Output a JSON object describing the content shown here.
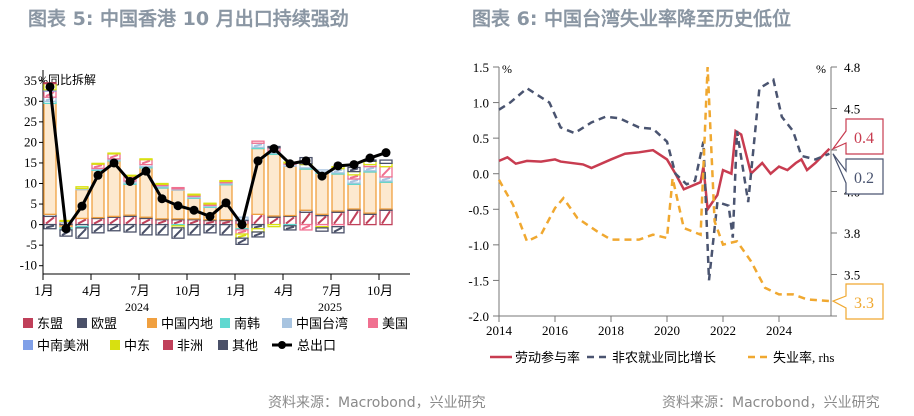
{
  "left": {
    "title": "图表 5:  中国香港 10 月出口持续强劲",
    "source": "资料来源：Macrobond，兴业研究",
    "chart_data": {
      "type": "bar",
      "stacked": true,
      "unit_label": "%同比拆解",
      "ylim": [
        -10,
        35
      ],
      "yticks": [
        -10,
        -5,
        0,
        5,
        10,
        15,
        20,
        25,
        30,
        35
      ],
      "x_tick_labels": [
        "1月",
        "4月",
        "7月",
        "10月",
        "1月",
        "4月",
        "7月",
        "10月"
      ],
      "year_labels": [
        "2024",
        "2025"
      ],
      "categories": [
        "2024-01",
        "2024-02",
        "2024-03",
        "2024-04",
        "2024-05",
        "2024-06",
        "2024-07",
        "2024-08",
        "2024-09",
        "2024-10",
        "2024-11",
        "2024-12",
        "2025-01",
        "2025-02",
        "2025-03",
        "2025-04",
        "2025-05",
        "2025-06",
        "2025-07",
        "2025-08",
        "2025-09",
        "2025-10"
      ],
      "series": [
        {
          "name": "东盟",
          "color": "#c0405a",
          "values": [
            2,
            0.5,
            1.5,
            1.5,
            1.8,
            2,
            1.5,
            1.2,
            1.2,
            1.2,
            1,
            1,
            1,
            2.5,
            1.8,
            2,
            3,
            2.2,
            3,
            3.5,
            2.5,
            3.5
          ]
        },
        {
          "name": "欧盟",
          "color": "#4a5068",
          "values": [
            0.5,
            -0.3,
            -0.5,
            0.2,
            0.2,
            0.3,
            0.3,
            0.2,
            0.2,
            0.2,
            0.2,
            0.2,
            0.3,
            -1,
            0.3,
            0.2,
            0.5,
            0.3,
            0.3,
            0.3,
            0.3,
            0.3
          ]
        },
        {
          "name": "中国内地",
          "color": "#f0a040",
          "values": [
            27,
            -0.5,
            7,
            11.5,
            13.5,
            7.5,
            12,
            7.5,
            7,
            5,
            3,
            8.5,
            -1,
            16,
            15,
            12,
            10,
            10,
            9,
            6,
            10,
            6.5
          ]
        },
        {
          "name": "南韩",
          "color": "#60d8d0",
          "values": [
            0.5,
            -0.5,
            -0.3,
            0.2,
            0.2,
            0.3,
            0.3,
            0.3,
            -0.3,
            0.2,
            0.2,
            0.2,
            -0.3,
            0.3,
            0.3,
            -0.3,
            0.3,
            0.3,
            0.3,
            0.3,
            0.3,
            0.3
          ]
        },
        {
          "name": "中国台湾",
          "color": "#a8c4e0",
          "values": [
            1,
            0.3,
            0.3,
            0.3,
            0.3,
            0.5,
            0.5,
            0.3,
            0.3,
            0.3,
            0.3,
            0.3,
            0.5,
            1,
            0.5,
            0.5,
            0.8,
            0.5,
            1,
            1,
            1,
            1
          ]
        },
        {
          "name": "美国",
          "color": "#f07090",
          "values": [
            1.5,
            0,
            0,
            1,
            1.2,
            1.2,
            1.2,
            0.3,
            0.3,
            0.3,
            0.3,
            0.3,
            -1,
            0.5,
            0.8,
            0.3,
            -1.3,
            -0.5,
            -0.5,
            1,
            0.5,
            2.5
          ]
        },
        {
          "name": "中南美洲",
          "color": "#80a0e8",
          "values": [
            0.3,
            0,
            0,
            0,
            0,
            0,
            0,
            0,
            0,
            0,
            0,
            0,
            0,
            0,
            0,
            0,
            0,
            0,
            0,
            0,
            0,
            0
          ]
        },
        {
          "name": "中东",
          "color": "#d8e010",
          "values": [
            1.5,
            0.2,
            0.4,
            0.2,
            0.2,
            0.2,
            0.2,
            0.2,
            -0.5,
            0.2,
            0.2,
            0.2,
            -1,
            -0.8,
            -0.5,
            0.2,
            0.2,
            -0.3,
            0.5,
            0.8,
            0.8,
            0.8
          ]
        },
        {
          "name": "非洲",
          "color": "#c0405a",
          "values": [
            0.2,
            0,
            0,
            0,
            0,
            0,
            0,
            0,
            0,
            0,
            0,
            0,
            0,
            0,
            0,
            0,
            0,
            0,
            0,
            0,
            0,
            0
          ]
        },
        {
          "name": "其他",
          "color": "#4a5068",
          "values": [
            -1,
            -1.5,
            -2.5,
            -2,
            -1.5,
            -1.8,
            -2.5,
            -2.5,
            -2.5,
            -2.5,
            -2,
            -2.5,
            -1.5,
            -1.2,
            0.3,
            -1,
            1.5,
            -0.8,
            -1.5,
            1,
            0.3,
            0.8
          ]
        }
      ],
      "line": {
        "name": "总出口",
        "color": "#000000",
        "values": [
          33.5,
          -1,
          4.5,
          12,
          15,
          10.5,
          13,
          6.3,
          4.6,
          3.5,
          2,
          5.3,
          0,
          15.5,
          18.5,
          14.8,
          15.5,
          11.8,
          14.3,
          14.6,
          16.2,
          17.5
        ]
      },
      "legend_placement": "bottom"
    }
  },
  "right": {
    "title": "图表 6:  中国台湾失业率降至历史低位",
    "source": "资料来源：Macrobond，兴业研究",
    "chart_data": {
      "type": "line",
      "left_unit": "%",
      "right_unit": "%",
      "xlim": [
        2014,
        2025.9
      ],
      "xticks": [
        "2014",
        "2016",
        "2018",
        "2020",
        "2022",
        "2024"
      ],
      "ylim": [
        -2.0,
        1.5
      ],
      "yticks": [
        "1.5",
        "1.0",
        "0.5",
        "0.0",
        "-0.5",
        "-1.0",
        "-1.5",
        "-2.0"
      ],
      "y2lim": [
        3.25,
        4.75
      ],
      "y2ticks": [
        "4.8",
        "4.5",
        "",
        "4.0",
        "3.8",
        "3.5",
        ""
      ],
      "series": [
        {
          "name": "劳动参与率",
          "axis": "left",
          "color": "#c83c50",
          "dash": false,
          "points": [
            [
              2014.0,
              0.18
            ],
            [
              2014.3,
              0.23
            ],
            [
              2014.6,
              0.14
            ],
            [
              2015.0,
              0.18
            ],
            [
              2015.5,
              0.17
            ],
            [
              2016.0,
              0.2
            ],
            [
              2016.2,
              0.17
            ],
            [
              2017.0,
              0.13
            ],
            [
              2017.3,
              0.08
            ],
            [
              2018.0,
              0.2
            ],
            [
              2018.5,
              0.28
            ],
            [
              2019.0,
              0.3
            ],
            [
              2019.5,
              0.33
            ],
            [
              2020.0,
              0.2
            ],
            [
              2020.3,
              0.0
            ],
            [
              2020.6,
              -0.22
            ],
            [
              2021.2,
              -0.12
            ],
            [
              2021.3,
              0.1
            ],
            [
              2021.45,
              -0.5
            ],
            [
              2021.8,
              -0.3
            ],
            [
              2022.0,
              0.05
            ],
            [
              2022.3,
              0.0
            ],
            [
              2022.45,
              0.6
            ],
            [
              2022.65,
              0.55
            ],
            [
              2023.0,
              0.0
            ],
            [
              2023.4,
              0.15
            ],
            [
              2023.7,
              0.0
            ],
            [
              2024.0,
              0.1
            ],
            [
              2024.3,
              0.05
            ],
            [
              2024.6,
              0.15
            ],
            [
              2024.8,
              0.2
            ],
            [
              2025.0,
              0.05
            ],
            [
              2025.3,
              0.15
            ],
            [
              2025.8,
              0.35
            ]
          ]
        },
        {
          "name": "非农就业同比增长",
          "axis": "left",
          "color": "#4a5470",
          "dash": true,
          "points": [
            [
              2014.0,
              0.9
            ],
            [
              2014.4,
              1.0
            ],
            [
              2015.0,
              1.2
            ],
            [
              2015.8,
              1.0
            ],
            [
              2016.2,
              0.65
            ],
            [
              2016.7,
              0.57
            ],
            [
              2017.3,
              0.72
            ],
            [
              2017.8,
              0.8
            ],
            [
              2018.3,
              0.78
            ],
            [
              2019.0,
              0.65
            ],
            [
              2019.5,
              0.63
            ],
            [
              2020.0,
              0.45
            ],
            [
              2020.3,
              0.0
            ],
            [
              2020.7,
              -0.15
            ],
            [
              2021.0,
              -0.1
            ],
            [
              2021.3,
              0.45
            ],
            [
              2021.5,
              -1.5
            ],
            [
              2021.8,
              -0.4
            ],
            [
              2022.2,
              -0.45
            ],
            [
              2022.35,
              -0.9
            ],
            [
              2022.5,
              0.6
            ],
            [
              2022.9,
              -0.4
            ],
            [
              2023.3,
              1.2
            ],
            [
              2023.8,
              1.32
            ],
            [
              2024.1,
              0.8
            ],
            [
              2024.5,
              0.6
            ],
            [
              2024.8,
              0.25
            ],
            [
              2025.3,
              0.2
            ],
            [
              2025.8,
              0.28
            ]
          ]
        },
        {
          "name": "失业率, rhs",
          "axis": "right",
          "color": "#f0a830",
          "dash": true,
          "points": [
            [
              2014.0,
              4.07
            ],
            [
              2014.5,
              3.92
            ],
            [
              2015.0,
              3.7
            ],
            [
              2015.5,
              3.74
            ],
            [
              2016.0,
              3.9
            ],
            [
              2016.3,
              3.96
            ],
            [
              2016.8,
              3.84
            ],
            [
              2017.5,
              3.76
            ],
            [
              2018.0,
              3.71
            ],
            [
              2019.0,
              3.71
            ],
            [
              2019.5,
              3.74
            ],
            [
              2020.0,
              3.72
            ],
            [
              2020.2,
              4.08
            ],
            [
              2020.6,
              3.78
            ],
            [
              2021.2,
              3.74
            ],
            [
              2021.45,
              4.75
            ],
            [
              2021.7,
              3.82
            ],
            [
              2022.0,
              3.68
            ],
            [
              2022.5,
              3.7
            ],
            [
              2023.0,
              3.58
            ],
            [
              2023.5,
              3.42
            ],
            [
              2024.0,
              3.38
            ],
            [
              2024.5,
              3.38
            ],
            [
              2025.0,
              3.35
            ],
            [
              2025.8,
              3.34
            ]
          ]
        }
      ],
      "callouts": [
        {
          "text": "0.4",
          "color": "#c83c50"
        },
        {
          "text": "0.2",
          "color": "#4a5470"
        },
        {
          "text": "3.3",
          "color": "#f0a830"
        }
      ],
      "legend_placement": "bottom"
    }
  }
}
